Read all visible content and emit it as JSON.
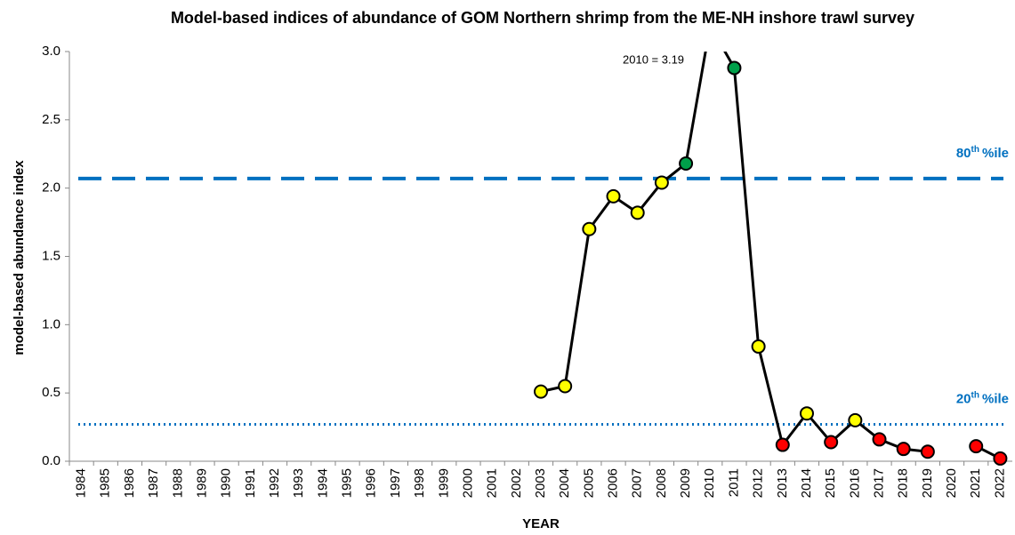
{
  "chart_data": {
    "type": "line",
    "title": "Model-based indices of abundance  of GOM Northern shrimp from the ME-NH inshore trawl survey",
    "x_label": "YEAR",
    "y_label": "model-based abundance index",
    "categories": [
      "1984",
      "1985",
      "1986",
      "1987",
      "1988",
      "1989",
      "1990",
      "1991",
      "1992",
      "1993",
      "1994",
      "1995",
      "1996",
      "1997",
      "1998",
      "1999",
      "2000",
      "2001",
      "2002",
      "2003",
      "2004",
      "2005",
      "2006",
      "2007",
      "2008",
      "2009",
      "2010",
      "2011",
      "2012",
      "2013",
      "2014",
      "2015",
      "2016",
      "2017",
      "2018",
      "2019",
      "2020",
      "2021",
      "2022"
    ],
    "values": [
      null,
      null,
      null,
      null,
      null,
      null,
      null,
      null,
      null,
      null,
      null,
      null,
      null,
      null,
      null,
      null,
      null,
      null,
      null,
      0.51,
      0.55,
      1.7,
      1.94,
      1.82,
      2.04,
      2.18,
      3.19,
      2.88,
      0.84,
      0.12,
      0.35,
      0.14,
      0.3,
      0.16,
      0.09,
      0.07,
      null,
      0.11,
      0.02
    ],
    "point_colors": [
      null,
      null,
      null,
      null,
      null,
      null,
      null,
      null,
      null,
      null,
      null,
      null,
      null,
      null,
      null,
      null,
      null,
      null,
      null,
      "#ffff00",
      "#ffff00",
      "#ffff00",
      "#ffff00",
      "#ffff00",
      "#ffff00",
      "#00a04a",
      null,
      "#00a04a",
      "#ffff00",
      "#ff0000",
      "#ffff00",
      "#ff0000",
      "#ffff00",
      "#ff0000",
      "#ff0000",
      "#ff0000",
      null,
      "#ff0000",
      "#ff0000"
    ],
    "color": "#000000",
    "ylim": [
      0,
      3
    ],
    "yticks": [
      {
        "value": 0,
        "label": "0.0"
      },
      0.5,
      {
        "value": 1,
        "label": "1.0"
      },
      1.5,
      {
        "value": 2,
        "label": "2.0"
      },
      2.5,
      {
        "value": 3,
        "label": "3.0"
      }
    ],
    "annotation": "2010 = 3.19",
    "reference_lines": [
      {
        "value": 2.07,
        "label": "80",
        "label_sup": "th",
        "label_suffix": "%ile",
        "color": "#0070c0",
        "style": "dashed"
      },
      {
        "value": 0.27,
        "label": "20",
        "label_sup": "th",
        "label_suffix": "%ile",
        "color": "#0070c0",
        "style": "dotted"
      }
    ]
  }
}
